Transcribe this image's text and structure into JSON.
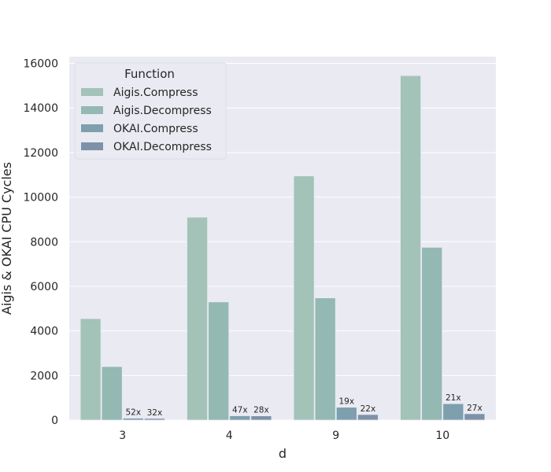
{
  "chart_data": {
    "type": "bar",
    "title": "",
    "xlabel": "d",
    "ylabel": "Aigis & OKAI CPU Cycles",
    "categories": [
      "3",
      "4",
      "9",
      "10"
    ],
    "ylim": [
      0,
      16000
    ],
    "yticks": [
      0,
      2000,
      4000,
      6000,
      8000,
      10000,
      12000,
      14000,
      16000
    ],
    "grid": true,
    "legend": {
      "title": "Function",
      "placement": "top-left"
    },
    "series": [
      {
        "name": "Aigis.Compress",
        "color": "#a3c2b8",
        "values": [
          4550,
          9100,
          10950,
          15450
        ],
        "labels": [
          "",
          "",
          "",
          ""
        ]
      },
      {
        "name": "Aigis.Decompress",
        "color": "#94b8b2",
        "values": [
          2400,
          5300,
          5480,
          7750
        ],
        "labels": [
          "",
          "",
          "",
          ""
        ]
      },
      {
        "name": "OKAI.Compress",
        "color": "#7e9fae",
        "values": [
          87,
          194,
          576,
          736
        ],
        "labels": [
          "52x",
          "47x",
          "19x",
          "21x"
        ]
      },
      {
        "name": "OKAI.Decompress",
        "color": "#7d92a8",
        "values": [
          75,
          189,
          249,
          287
        ],
        "labels": [
          "32x",
          "28x",
          "22x",
          "27x"
        ]
      }
    ]
  }
}
